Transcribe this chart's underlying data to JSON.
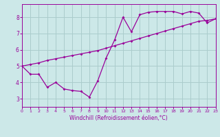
{
  "background_color": "#cce8e8",
  "grid_color": "#aacccc",
  "line_color": "#990099",
  "line1_x": [
    0,
    1,
    2,
    3,
    4,
    5,
    6,
    7,
    8,
    9,
    10,
    11,
    12,
    13,
    14,
    15,
    16,
    17,
    18,
    19,
    20,
    21,
    22,
    23
  ],
  "line1_y": [
    5.0,
    4.5,
    4.5,
    3.7,
    4.0,
    3.6,
    3.5,
    3.45,
    3.1,
    4.1,
    5.5,
    6.6,
    8.0,
    7.1,
    8.15,
    8.3,
    8.35,
    8.35,
    8.35,
    8.2,
    8.35,
    8.25,
    7.65,
    7.9
  ],
  "line2_x": [
    0,
    1,
    2,
    3,
    4,
    5,
    6,
    7,
    8,
    9,
    10,
    11,
    12,
    13,
    14,
    15,
    16,
    17,
    18,
    19,
    20,
    21,
    22,
    23
  ],
  "line2_y": [
    5.0,
    5.1,
    5.2,
    5.35,
    5.45,
    5.55,
    5.65,
    5.75,
    5.85,
    5.95,
    6.1,
    6.25,
    6.4,
    6.55,
    6.7,
    6.85,
    7.0,
    7.15,
    7.3,
    7.45,
    7.6,
    7.75,
    7.8,
    7.9
  ],
  "xlabel": "Windchill (Refroidissement éolien,°C)",
  "xlim": [
    0,
    23
  ],
  "ylim": [
    2.5,
    8.8
  ],
  "yticks": [
    3,
    4,
    5,
    6,
    7,
    8
  ],
  "xticks": [
    0,
    1,
    2,
    3,
    4,
    5,
    6,
    7,
    8,
    9,
    10,
    11,
    12,
    13,
    14,
    15,
    16,
    17,
    18,
    19,
    20,
    21,
    22,
    23
  ],
  "tick_fontsize_x": 4.5,
  "tick_fontsize_y": 5.5,
  "xlabel_fontsize": 5.5,
  "marker_size": 2.0,
  "line_width": 0.9
}
